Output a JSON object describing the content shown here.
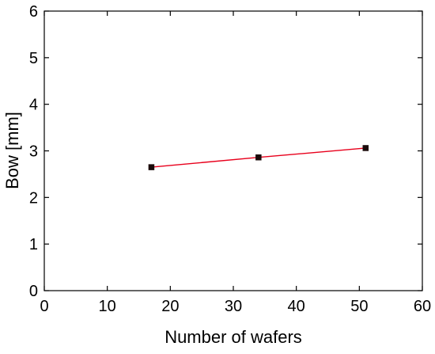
{
  "chart_data": {
    "type": "line",
    "title": "",
    "xlabel": "Number of wafers",
    "ylabel": "Bow [mm]",
    "xlim": [
      0,
      60
    ],
    "ylim": [
      0,
      6
    ],
    "xticks": [
      0,
      10,
      20,
      30,
      40,
      50,
      60
    ],
    "yticks": [
      0,
      1,
      2,
      3,
      4,
      5,
      6
    ],
    "grid": false,
    "series": [
      {
        "color": "#e8001c",
        "marker_color": "#1a0a0a",
        "marker": "square",
        "points": [
          {
            "x": 17,
            "y": 2.65
          },
          {
            "x": 34,
            "y": 2.86
          },
          {
            "x": 51,
            "y": 3.06
          }
        ]
      }
    ]
  }
}
